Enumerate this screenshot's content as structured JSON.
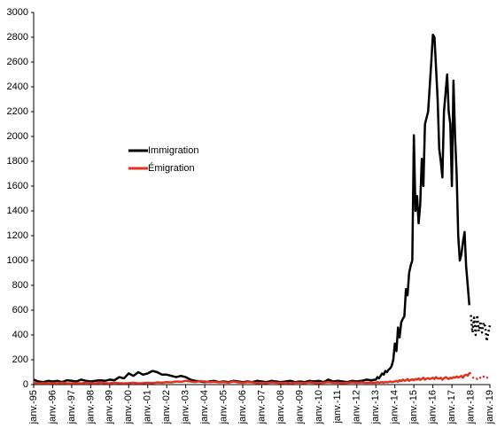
{
  "chart_data": {
    "type": "line",
    "x": [
      1995,
      1995.25,
      1995.5,
      1995.75,
      1996,
      1996.25,
      1996.5,
      1996.75,
      1997,
      1997.25,
      1997.5,
      1997.75,
      1998,
      1998.25,
      1998.5,
      1998.75,
      1999,
      1999.25,
      1999.5,
      1999.75,
      2000,
      2000.25,
      2000.5,
      2000.75,
      2001,
      2001.25,
      2001.5,
      2001.75,
      2002,
      2002.25,
      2002.5,
      2002.75,
      2003,
      2003.25,
      2003.5,
      2003.75,
      2004,
      2004.25,
      2004.5,
      2004.75,
      2005,
      2005.25,
      2005.5,
      2005.75,
      2006,
      2006.25,
      2006.5,
      2006.75,
      2007,
      2007.25,
      2007.5,
      2007.75,
      2008,
      2008.25,
      2008.5,
      2008.75,
      2009,
      2009.25,
      2009.5,
      2009.75,
      2010,
      2010.25,
      2010.5,
      2010.75,
      2011,
      2011.25,
      2011.5,
      2011.75,
      2012,
      2012.25,
      2012.5,
      2012.75,
      2013,
      2013.083,
      2013.167,
      2013.25,
      2013.333,
      2013.417,
      2013.5,
      2013.583,
      2013.667,
      2013.75,
      2013.833,
      2013.917,
      2014,
      2014.083,
      2014.167,
      2014.25,
      2014.333,
      2014.417,
      2014.5,
      2014.583,
      2014.667,
      2014.75,
      2014.833,
      2014.917,
      2015,
      2015.083,
      2015.167,
      2015.25,
      2015.333,
      2015.417,
      2015.5,
      2015.583,
      2015.667,
      2015.75,
      2015.833,
      2015.917,
      2016,
      2016.083,
      2016.167,
      2016.25,
      2016.333,
      2016.417,
      2016.5,
      2016.583,
      2016.667,
      2016.75,
      2016.833,
      2016.917,
      2017,
      2017.083,
      2017.167,
      2017.25,
      2017.333,
      2017.417,
      2017.5,
      2017.583,
      2017.667,
      2017.75,
      2017.833,
      2017.917,
      2018
    ],
    "series": [
      {
        "name": "Immigration",
        "color": "#000000",
        "values": [
          40,
          25,
          20,
          30,
          25,
          30,
          20,
          35,
          30,
          25,
          40,
          30,
          25,
          30,
          35,
          30,
          40,
          35,
          60,
          50,
          90,
          70,
          100,
          80,
          90,
          110,
          100,
          80,
          80,
          70,
          60,
          70,
          60,
          40,
          30,
          25,
          20,
          25,
          30,
          20,
          25,
          20,
          30,
          25,
          20,
          25,
          20,
          30,
          25,
          20,
          30,
          25,
          20,
          25,
          30,
          20,
          25,
          20,
          30,
          25,
          30,
          20,
          40,
          25,
          30,
          25,
          20,
          30,
          25,
          30,
          40,
          35,
          40,
          60,
          50,
          70,
          90,
          80,
          110,
          100,
          120,
          130,
          150,
          200,
          330,
          270,
          460,
          380,
          500,
          530,
          550,
          770,
          720,
          900,
          960,
          1000,
          2010,
          1400,
          1520,
          1300,
          1450,
          1820,
          1600,
          2100,
          2150,
          2200,
          2400,
          2600,
          2820,
          2800,
          2550,
          2300,
          1900,
          1800,
          1670,
          2200,
          2350,
          2500,
          2200,
          2100,
          1600,
          2450,
          2000,
          1700,
          1200,
          1000,
          1050,
          1150,
          1230,
          950,
          800,
          640,
          null
        ],
        "projection": {
          "x": [
            2018,
            2018.083,
            2018.167,
            2018.25,
            2018.333,
            2018.417,
            2018.5,
            2018.583,
            2018.667,
            2018.75,
            2018.833,
            2018.917,
            2019
          ],
          "values": [
            560,
            420,
            540,
            400,
            560,
            430,
            510,
            420,
            500,
            470,
            350,
            420,
            480
          ]
        }
      },
      {
        "name": "Émigration",
        "color": "#e0321e",
        "values": [
          15,
          10,
          12,
          10,
          12,
          10,
          15,
          10,
          10,
          12,
          10,
          15,
          12,
          10,
          15,
          12,
          10,
          15,
          12,
          10,
          12,
          15,
          10,
          12,
          15,
          12,
          18,
          15,
          20,
          18,
          25,
          22,
          30,
          25,
          20,
          28,
          25,
          20,
          22,
          18,
          20,
          15,
          25,
          18,
          15,
          20,
          18,
          12,
          15,
          12,
          18,
          15,
          12,
          15,
          10,
          15,
          15,
          12,
          18,
          14,
          12,
          15,
          20,
          15,
          15,
          12,
          14,
          18,
          15,
          18,
          14,
          16,
          15,
          20,
          15,
          18,
          20,
          15,
          22,
          18,
          20,
          25,
          20,
          22,
          25,
          30,
          22,
          35,
          28,
          40,
          30,
          35,
          45,
          30,
          38,
          42,
          35,
          45,
          40,
          50,
          38,
          45,
          55,
          40,
          48,
          52,
          45,
          50,
          55,
          45,
          60,
          50,
          48,
          55,
          40,
          50,
          60,
          52,
          45,
          55,
          50,
          60,
          55,
          65,
          58,
          62,
          70,
          55,
          75,
          80,
          72,
          90,
          95
        ],
        "projection": {
          "x": [
            2018.083,
            2018.167,
            2018.25,
            2018.333,
            2018.417,
            2018.5,
            2018.583,
            2018.667,
            2018.75,
            2018.833,
            2018.917,
            2019
          ],
          "values": [
            60,
            50,
            55,
            45,
            60,
            55,
            50,
            65,
            50,
            55,
            60,
            50
          ]
        }
      }
    ],
    "xlim": [
      1995,
      2019
    ],
    "xticks": [
      {
        "value": 1995,
        "label": "janv.-95"
      },
      {
        "value": 1996,
        "label": "janv.-96"
      },
      {
        "value": 1997,
        "label": "janv.-97"
      },
      {
        "value": 1998,
        "label": "janv.-98"
      },
      {
        "value": 1999,
        "label": "janv.-99"
      },
      {
        "value": 2000,
        "label": "janv.-00"
      },
      {
        "value": 2001,
        "label": "janv.-01"
      },
      {
        "value": 2002,
        "label": "janv.-02"
      },
      {
        "value": 2003,
        "label": "janv.-03"
      },
      {
        "value": 2004,
        "label": "janv.-04"
      },
      {
        "value": 2005,
        "label": "janv.-05"
      },
      {
        "value": 2006,
        "label": "janv.-06"
      },
      {
        "value": 2007,
        "label": "janv.-07"
      },
      {
        "value": 2008,
        "label": "janv.-08"
      },
      {
        "value": 2009,
        "label": "janv.-09"
      },
      {
        "value": 2010,
        "label": "janv.-10"
      },
      {
        "value": 2011,
        "label": "janv.-11"
      },
      {
        "value": 2012,
        "label": "janv.-12"
      },
      {
        "value": 2013,
        "label": "janv.-13"
      },
      {
        "value": 2014,
        "label": "janv.-14"
      },
      {
        "value": 2015,
        "label": "janv.-15"
      },
      {
        "value": 2016,
        "label": "janv.-16"
      },
      {
        "value": 2017,
        "label": "janv.-17"
      },
      {
        "value": 2018,
        "label": "janv.-18"
      },
      {
        "value": 2019,
        "label": "janv.-19"
      }
    ],
    "ylim": [
      0,
      3000
    ],
    "yticks": [
      0,
      200,
      400,
      600,
      800,
      1000,
      1200,
      1400,
      1600,
      1800,
      2000,
      2200,
      2400,
      2600,
      2800,
      3000
    ],
    "grid": false,
    "legend": "center-left"
  }
}
